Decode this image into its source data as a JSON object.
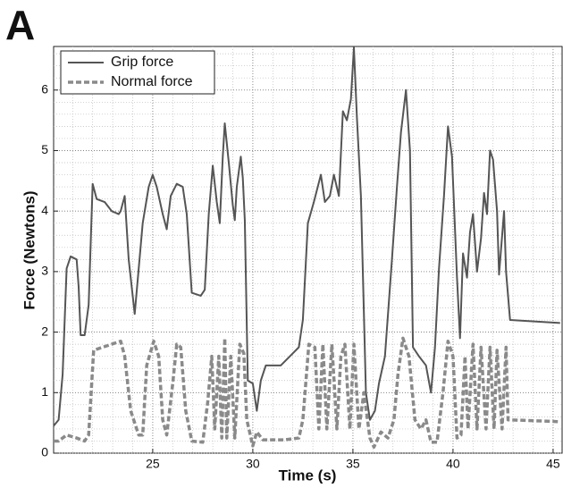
{
  "chart_data": {
    "type": "line",
    "panel_label": "A",
    "x_label": "Time (s)",
    "y_label": "Force (Newtons)",
    "xlim": [
      20.05,
      45.45
    ],
    "ylim": [
      0,
      6.72
    ],
    "xticks": [
      25,
      30,
      35,
      40,
      45
    ],
    "yticks": [
      0,
      1,
      2,
      3,
      4,
      5,
      6
    ],
    "grid": true,
    "legend": "upper left",
    "series": [
      {
        "name": "Grip force",
        "color": "#555555",
        "dash": "solid",
        "x": [
          20.05,
          20.3,
          20.5,
          20.7,
          20.9,
          21.2,
          21.3,
          21.4,
          21.6,
          21.8,
          22.0,
          22.2,
          22.6,
          22.95,
          23.3,
          23.4,
          23.6,
          23.8,
          24.1,
          24.3,
          24.5,
          24.8,
          25.0,
          25.2,
          25.5,
          25.7,
          25.9,
          26.2,
          26.5,
          26.7,
          26.95,
          27.4,
          27.6,
          27.8,
          28.0,
          28.2,
          28.35,
          28.5,
          28.6,
          28.8,
          29.0,
          29.1,
          29.2,
          29.4,
          29.5,
          29.6,
          29.75,
          30.0,
          30.2,
          30.4,
          30.65,
          31.4,
          31.85,
          32.3,
          32.5,
          32.75,
          33.05,
          33.4,
          33.6,
          33.85,
          34.05,
          34.3,
          34.5,
          34.7,
          34.9,
          35.05,
          35.2,
          35.4,
          35.65,
          35.85,
          36.1,
          36.3,
          36.6,
          36.95,
          37.2,
          37.4,
          37.65,
          37.85,
          38.0,
          38.3,
          38.65,
          38.9,
          39.1,
          39.3,
          39.55,
          39.75,
          39.95,
          40.2,
          40.35,
          40.5,
          40.7,
          40.85,
          41.0,
          41.2,
          41.4,
          41.55,
          41.7,
          41.85,
          42.0,
          42.2,
          42.3,
          42.55,
          42.65,
          42.85,
          45.35
        ],
        "values": [
          0.45,
          0.55,
          1.3,
          3.05,
          3.25,
          3.2,
          2.75,
          1.95,
          1.95,
          2.45,
          4.45,
          4.2,
          4.15,
          4.0,
          3.95,
          4.0,
          4.25,
          3.2,
          2.3,
          3.05,
          3.8,
          4.4,
          4.6,
          4.4,
          3.95,
          3.7,
          4.25,
          4.45,
          4.4,
          3.95,
          2.65,
          2.6,
          2.7,
          3.95,
          4.75,
          4.15,
          3.8,
          4.9,
          5.45,
          4.8,
          4.1,
          3.85,
          4.4,
          4.9,
          4.55,
          3.85,
          1.2,
          1.15,
          0.7,
          1.2,
          1.45,
          1.45,
          1.6,
          1.75,
          2.2,
          3.8,
          4.15,
          4.6,
          4.15,
          4.25,
          4.6,
          4.25,
          5.65,
          5.5,
          5.85,
          6.7,
          5.55,
          4.25,
          1.0,
          0.55,
          0.7,
          1.15,
          1.6,
          3.2,
          4.4,
          5.3,
          6.0,
          5.0,
          1.75,
          1.6,
          1.45,
          1.0,
          1.75,
          3.05,
          4.25,
          5.4,
          4.9,
          2.9,
          1.9,
          3.3,
          2.9,
          3.65,
          3.95,
          3.0,
          3.55,
          4.3,
          3.95,
          5.0,
          4.85,
          4.0,
          2.95,
          4.0,
          3.0,
          2.2,
          2.15
        ]
      },
      {
        "name": "Normal force",
        "color": "#8a8a8a",
        "dash": "dashed",
        "x": [
          20.05,
          20.3,
          20.7,
          21.2,
          21.6,
          21.8,
          22.05,
          22.95,
          23.4,
          23.6,
          23.9,
          24.3,
          24.5,
          24.7,
          25.05,
          25.3,
          25.5,
          25.7,
          26.0,
          26.2,
          26.4,
          26.65,
          26.95,
          27.5,
          27.75,
          27.95,
          28.1,
          28.3,
          28.45,
          28.6,
          28.7,
          28.9,
          29.1,
          29.35,
          29.55,
          29.7,
          30.0,
          30.2,
          30.5,
          31.6,
          32.3,
          32.5,
          32.8,
          33.1,
          33.3,
          33.5,
          33.7,
          33.95,
          34.2,
          34.4,
          34.6,
          34.85,
          35.05,
          35.3,
          35.55,
          35.85,
          36.05,
          36.4,
          36.75,
          37.05,
          37.25,
          37.5,
          37.8,
          38.1,
          38.4,
          38.65,
          38.9,
          39.2,
          39.5,
          39.75,
          40.0,
          40.2,
          40.4,
          40.6,
          40.75,
          41.0,
          41.2,
          41.4,
          41.65,
          41.85,
          42.05,
          42.2,
          42.45,
          42.65,
          42.75,
          42.85,
          45.35
        ],
        "values": [
          0.2,
          0.2,
          0.3,
          0.25,
          0.2,
          0.3,
          1.7,
          1.8,
          1.85,
          1.6,
          0.7,
          0.3,
          0.3,
          1.45,
          1.85,
          1.6,
          0.55,
          0.3,
          1.15,
          1.8,
          1.75,
          0.7,
          0.2,
          0.18,
          0.85,
          1.6,
          0.4,
          1.6,
          0.25,
          1.9,
          0.25,
          1.6,
          0.25,
          1.8,
          1.65,
          0.55,
          0.12,
          0.35,
          0.22,
          0.22,
          0.25,
          0.55,
          1.8,
          1.75,
          0.4,
          1.8,
          0.4,
          1.8,
          0.4,
          1.6,
          1.8,
          0.4,
          1.8,
          0.4,
          1.0,
          0.25,
          0.1,
          0.35,
          0.25,
          0.55,
          1.3,
          1.9,
          1.6,
          0.55,
          0.4,
          0.55,
          0.18,
          0.18,
          1.0,
          1.85,
          1.6,
          0.25,
          0.3,
          1.6,
          0.4,
          1.8,
          0.4,
          1.75,
          0.4,
          1.75,
          0.4,
          1.7,
          0.4,
          1.75,
          0.55,
          0.55,
          0.52
        ]
      }
    ]
  }
}
